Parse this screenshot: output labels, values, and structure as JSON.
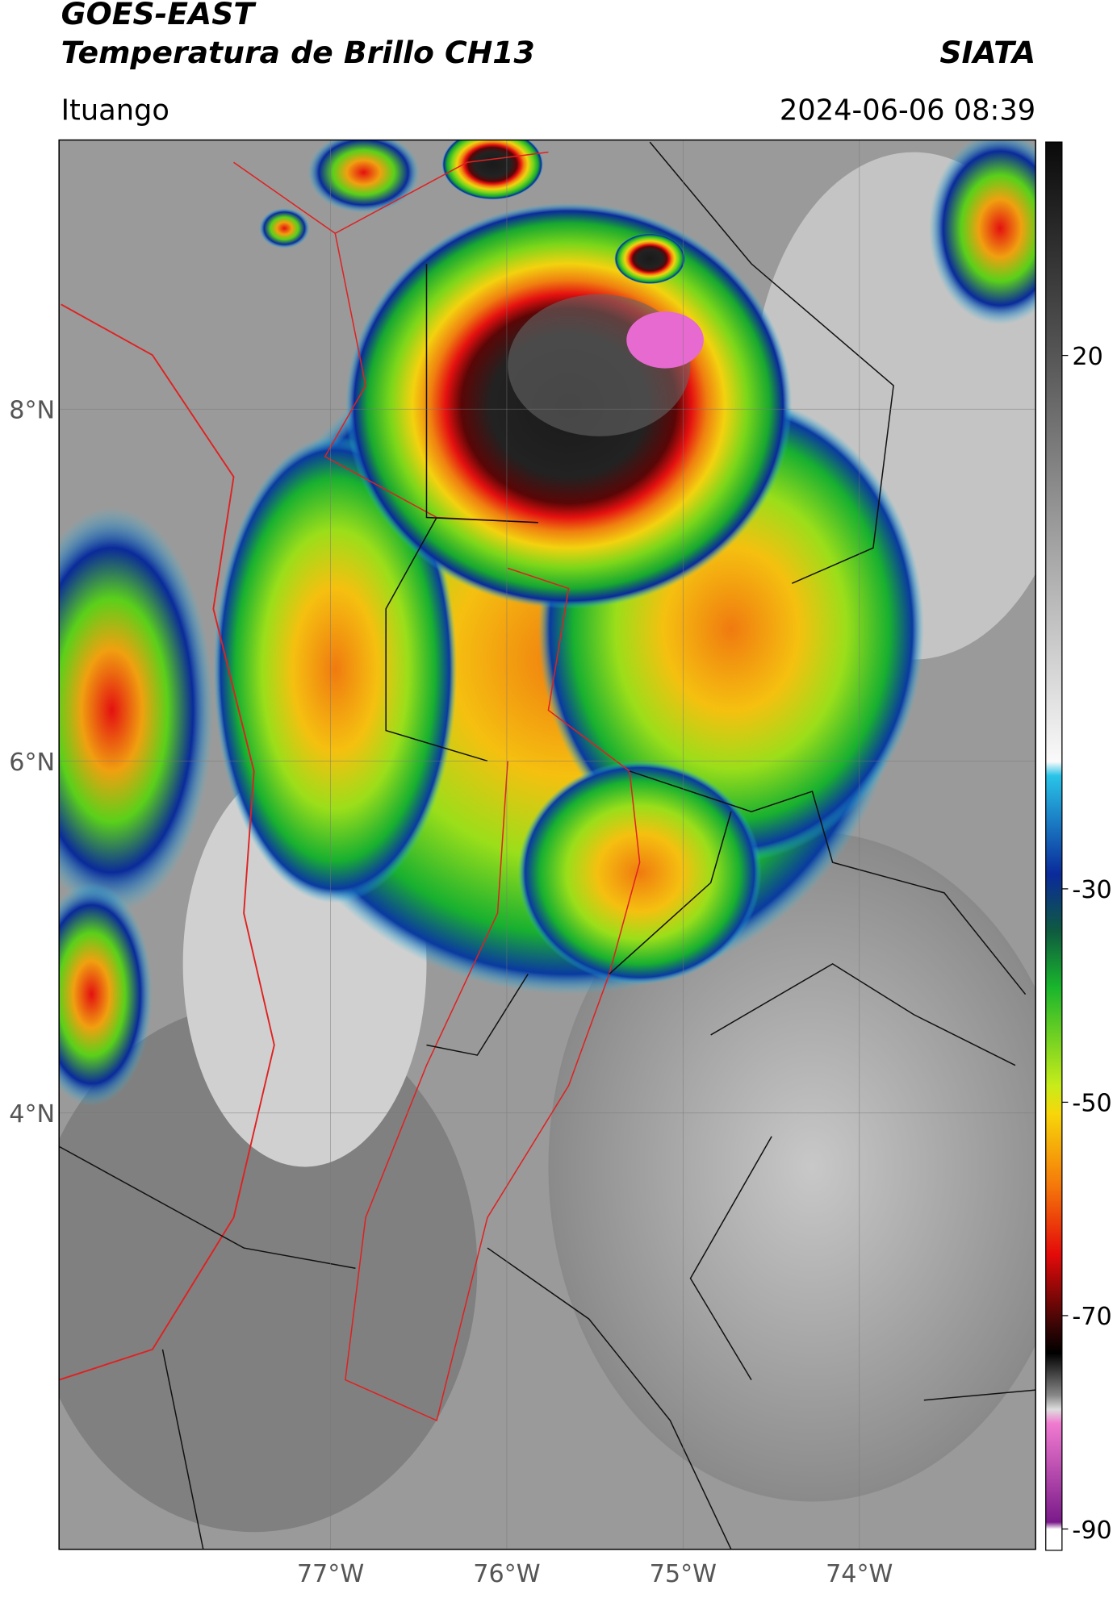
{
  "header": {
    "satellite": "GOES-EAST",
    "product": "Temperatura de Brillo CH13",
    "source": "SIATA",
    "location": "Ituango",
    "datetime": "2024-06-06 08:39"
  },
  "map": {
    "xlim": [
      -78.54,
      -73.0
    ],
    "ylim": [
      1.52,
      9.53
    ],
    "xticks": [
      {
        "value": -77,
        "label": "77°W"
      },
      {
        "value": -76,
        "label": "76°W"
      },
      {
        "value": -75,
        "label": "75°W"
      },
      {
        "value": -74,
        "label": "74°W"
      }
    ],
    "yticks": [
      {
        "value": 8,
        "label": "8°N"
      },
      {
        "value": 6,
        "label": "6°N"
      },
      {
        "value": 4,
        "label": "4°N"
      }
    ]
  },
  "colorbar": {
    "lim": [
      -92,
      40
    ],
    "ticks": [
      20,
      -30,
      -50,
      -70,
      -90
    ]
  }
}
